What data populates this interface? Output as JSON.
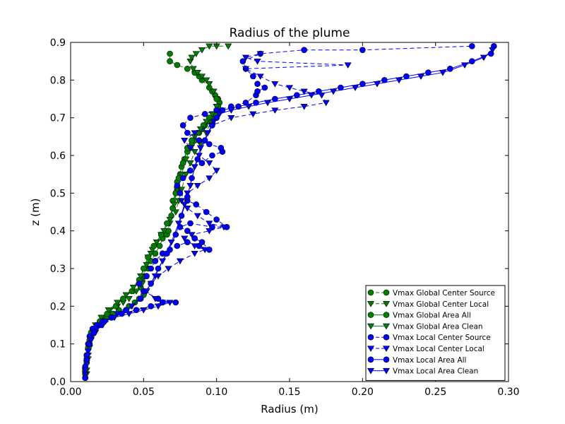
{
  "chart_data": {
    "type": "line",
    "title": "Radius of the plume",
    "xlabel": "Radius (m)",
    "ylabel": "z (m)",
    "xlim": [
      0.0,
      0.3
    ],
    "ylim": [
      0.0,
      0.9
    ],
    "xticks": [
      "0.00",
      "0.05",
      "0.10",
      "0.15",
      "0.20",
      "0.25",
      "0.30"
    ],
    "yticks": [
      "0.0",
      "0.1",
      "0.2",
      "0.3",
      "0.4",
      "0.5",
      "0.6",
      "0.7",
      "0.8",
      "0.9"
    ],
    "grid": false,
    "legend_position": "lower-right",
    "series": [
      {
        "name": "Vmax Global Center Source",
        "color": "#008000",
        "marker": "circle",
        "line": "dashed",
        "x": [
          0.01,
          0.01,
          0.011,
          0.011,
          0.012,
          0.013,
          0.014,
          0.016,
          0.018,
          0.021,
          0.025,
          0.029,
          0.033,
          0.038,
          0.04,
          0.044,
          0.047,
          0.05,
          0.05,
          0.048,
          0.047,
          0.049,
          0.052,
          0.053,
          0.055,
          0.058,
          0.061,
          0.063,
          0.066,
          0.067,
          0.067,
          0.069,
          0.07,
          0.07,
          0.072,
          0.073,
          0.073,
          0.075,
          0.076,
          0.078,
          0.08,
          0.082,
          0.083,
          0.085,
          0.088,
          0.09,
          0.092,
          0.095,
          0.098,
          0.1,
          0.102,
          0.101,
          0.099,
          0.097,
          0.095,
          0.09,
          0.088,
          0.085,
          0.08,
          0.073,
          0.068,
          0.068
        ],
        "y": [
          0.01,
          0.03,
          0.05,
          0.07,
          0.09,
          0.11,
          0.13,
          0.14,
          0.15,
          0.16,
          0.17,
          0.18,
          0.19,
          0.19,
          0.2,
          0.21,
          0.22,
          0.23,
          0.24,
          0.25,
          0.26,
          0.27,
          0.28,
          0.3,
          0.32,
          0.34,
          0.36,
          0.38,
          0.39,
          0.4,
          0.42,
          0.44,
          0.46,
          0.48,
          0.5,
          0.51,
          0.53,
          0.55,
          0.57,
          0.59,
          0.61,
          0.62,
          0.63,
          0.64,
          0.66,
          0.67,
          0.68,
          0.69,
          0.7,
          0.72,
          0.74,
          0.75,
          0.76,
          0.77,
          0.78,
          0.8,
          0.81,
          0.82,
          0.83,
          0.84,
          0.85,
          0.87
        ]
      },
      {
        "name": "Vmax Global Center Local",
        "color": "#008000",
        "marker": "triangle-down",
        "line": "dashed",
        "x": [
          0.011,
          0.012,
          0.013,
          0.015,
          0.018,
          0.022,
          0.027,
          0.032,
          0.036,
          0.04,
          0.045,
          0.049,
          0.05,
          0.051,
          0.053,
          0.056,
          0.059,
          0.062,
          0.068,
          0.072,
          0.074,
          0.076,
          0.079,
          0.082,
          0.085,
          0.089,
          0.093,
          0.096,
          0.098,
          0.1,
          0.1,
          0.098,
          0.095,
          0.093,
          0.09,
          0.087,
          0.084,
          0.082,
          0.083,
          0.086,
          0.09,
          0.095,
          0.1,
          0.108
        ],
        "y": [
          0.02,
          0.06,
          0.09,
          0.12,
          0.15,
          0.17,
          0.19,
          0.2,
          0.21,
          0.22,
          0.24,
          0.26,
          0.28,
          0.3,
          0.33,
          0.35,
          0.37,
          0.39,
          0.42,
          0.45,
          0.48,
          0.51,
          0.55,
          0.58,
          0.61,
          0.63,
          0.66,
          0.69,
          0.71,
          0.73,
          0.75,
          0.77,
          0.79,
          0.8,
          0.81,
          0.82,
          0.83,
          0.85,
          0.86,
          0.87,
          0.88,
          0.89,
          0.89,
          0.89
        ]
      },
      {
        "name": "Vmax Global Area All",
        "color": "#008000",
        "marker": "circle",
        "line": "solid",
        "x": [
          0.01,
          0.011,
          0.013,
          0.016,
          0.02,
          0.025,
          0.031,
          0.036,
          0.042,
          0.047,
          0.05,
          0.053,
          0.057,
          0.062,
          0.066,
          0.07,
          0.072,
          0.074,
          0.077,
          0.08,
          0.083,
          0.087,
          0.091,
          0.095,
          0.099,
          0.101,
          0.1
        ],
        "y": [
          0.02,
          0.07,
          0.11,
          0.14,
          0.16,
          0.18,
          0.2,
          0.22,
          0.24,
          0.27,
          0.3,
          0.33,
          0.36,
          0.39,
          0.42,
          0.46,
          0.5,
          0.54,
          0.58,
          0.62,
          0.64,
          0.66,
          0.68,
          0.7,
          0.71,
          0.73,
          0.75
        ]
      },
      {
        "name": "Vmax Global Area Clean",
        "color": "#008000",
        "marker": "triangle-down",
        "line": "solid",
        "x": [
          0.011,
          0.012,
          0.014,
          0.017,
          0.021,
          0.026,
          0.032,
          0.038,
          0.043,
          0.048,
          0.052,
          0.055,
          0.059,
          0.064,
          0.068,
          0.071,
          0.073,
          0.076,
          0.079,
          0.082,
          0.085,
          0.089,
          0.093,
          0.097,
          0.1
        ],
        "y": [
          0.03,
          0.08,
          0.12,
          0.15,
          0.17,
          0.19,
          0.21,
          0.23,
          0.25,
          0.28,
          0.31,
          0.34,
          0.37,
          0.4,
          0.43,
          0.47,
          0.51,
          0.55,
          0.59,
          0.62,
          0.65,
          0.67,
          0.69,
          0.71,
          0.73
        ]
      },
      {
        "name": "Vmax Local Center Source",
        "color": "#0000ff",
        "marker": "circle",
        "line": "dashed",
        "x": [
          0.01,
          0.01,
          0.011,
          0.012,
          0.013,
          0.015,
          0.018,
          0.022,
          0.028,
          0.035,
          0.045,
          0.055,
          0.063,
          0.072,
          0.06,
          0.05,
          0.047,
          0.052,
          0.055,
          0.058,
          0.063,
          0.068,
          0.073,
          0.08,
          0.088,
          0.095,
          0.09,
          0.085,
          0.08,
          0.075,
          0.082,
          0.097,
          0.107,
          0.1,
          0.093,
          0.086,
          0.08,
          0.075,
          0.073,
          0.077,
          0.082,
          0.09,
          0.097,
          0.104,
          0.103,
          0.095,
          0.088,
          0.08,
          0.077,
          0.082,
          0.092,
          0.1,
          0.11,
          0.12,
          0.127,
          0.128,
          0.133,
          0.128,
          0.125,
          0.12,
          0.118,
          0.13,
          0.16,
          0.2,
          0.275
        ],
        "y": [
          0.01,
          0.04,
          0.07,
          0.1,
          0.12,
          0.14,
          0.15,
          0.16,
          0.17,
          0.18,
          0.19,
          0.2,
          0.21,
          0.21,
          0.22,
          0.24,
          0.26,
          0.28,
          0.3,
          0.32,
          0.34,
          0.35,
          0.36,
          0.37,
          0.36,
          0.35,
          0.37,
          0.38,
          0.4,
          0.41,
          0.42,
          0.41,
          0.41,
          0.43,
          0.45,
          0.47,
          0.48,
          0.5,
          0.52,
          0.54,
          0.56,
          0.58,
          0.6,
          0.61,
          0.62,
          0.63,
          0.64,
          0.66,
          0.68,
          0.7,
          0.71,
          0.72,
          0.73,
          0.74,
          0.76,
          0.77,
          0.78,
          0.79,
          0.81,
          0.83,
          0.85,
          0.87,
          0.88,
          0.88,
          0.89
        ]
      },
      {
        "name": "Vmax Local Center Local",
        "color": "#0000ff",
        "marker": "triangle-down",
        "line": "dashed",
        "x": [
          0.01,
          0.011,
          0.012,
          0.014,
          0.017,
          0.022,
          0.03,
          0.04,
          0.05,
          0.06,
          0.068,
          0.058,
          0.052,
          0.055,
          0.06,
          0.067,
          0.075,
          0.085,
          0.092,
          0.085,
          0.078,
          0.083,
          0.095,
          0.105,
          0.095,
          0.087,
          0.08,
          0.076,
          0.08,
          0.087,
          0.095,
          0.1,
          0.095,
          0.088,
          0.082,
          0.078,
          0.085,
          0.097,
          0.11,
          0.125,
          0.14,
          0.16,
          0.175,
          0.172,
          0.16,
          0.15,
          0.14,
          0.13,
          0.12,
          0.19,
          0.128,
          0.12,
          0.13
        ],
        "y": [
          0.02,
          0.05,
          0.08,
          0.11,
          0.13,
          0.15,
          0.17,
          0.18,
          0.19,
          0.2,
          0.21,
          0.22,
          0.24,
          0.26,
          0.28,
          0.3,
          0.32,
          0.34,
          0.35,
          0.36,
          0.38,
          0.39,
          0.4,
          0.41,
          0.42,
          0.44,
          0.46,
          0.48,
          0.5,
          0.52,
          0.54,
          0.56,
          0.58,
          0.6,
          0.62,
          0.64,
          0.66,
          0.68,
          0.7,
          0.71,
          0.72,
          0.73,
          0.74,
          0.76,
          0.77,
          0.78,
          0.79,
          0.81,
          0.83,
          0.84,
          0.85,
          0.86,
          0.87
        ]
      },
      {
        "name": "Vmax Local Area All",
        "color": "#0000ff",
        "marker": "circle",
        "line": "solid",
        "x": [
          0.01,
          0.011,
          0.013,
          0.016,
          0.021,
          0.028,
          0.038,
          0.048,
          0.055,
          0.06,
          0.066,
          0.072,
          0.076,
          0.08,
          0.083,
          0.087,
          0.092,
          0.097,
          0.1,
          0.104,
          0.115,
          0.127,
          0.14,
          0.155,
          0.17,
          0.185,
          0.2,
          0.215,
          0.23,
          0.245,
          0.26,
          0.275,
          0.288,
          0.29
        ],
        "y": [
          0.01,
          0.06,
          0.1,
          0.13,
          0.15,
          0.17,
          0.19,
          0.22,
          0.26,
          0.3,
          0.34,
          0.39,
          0.44,
          0.49,
          0.54,
          0.59,
          0.64,
          0.68,
          0.7,
          0.72,
          0.73,
          0.74,
          0.75,
          0.76,
          0.77,
          0.78,
          0.79,
          0.8,
          0.81,
          0.82,
          0.83,
          0.85,
          0.87,
          0.89
        ]
      },
      {
        "name": "Vmax Local Area Clean",
        "color": "#0000ff",
        "marker": "triangle-down",
        "line": "solid",
        "x": [
          0.01,
          0.012,
          0.014,
          0.018,
          0.024,
          0.032,
          0.042,
          0.052,
          0.058,
          0.063,
          0.069,
          0.074,
          0.078,
          0.082,
          0.085,
          0.089,
          0.094,
          0.098,
          0.102,
          0.11,
          0.122,
          0.135,
          0.15,
          0.165,
          0.18,
          0.195,
          0.21,
          0.225,
          0.24,
          0.255,
          0.27,
          0.283,
          0.289
        ],
        "y": [
          0.03,
          0.07,
          0.11,
          0.14,
          0.16,
          0.18,
          0.2,
          0.24,
          0.28,
          0.32,
          0.37,
          0.42,
          0.47,
          0.52,
          0.57,
          0.62,
          0.66,
          0.69,
          0.71,
          0.72,
          0.73,
          0.74,
          0.75,
          0.76,
          0.77,
          0.78,
          0.79,
          0.8,
          0.81,
          0.82,
          0.84,
          0.86,
          0.88
        ]
      }
    ]
  }
}
